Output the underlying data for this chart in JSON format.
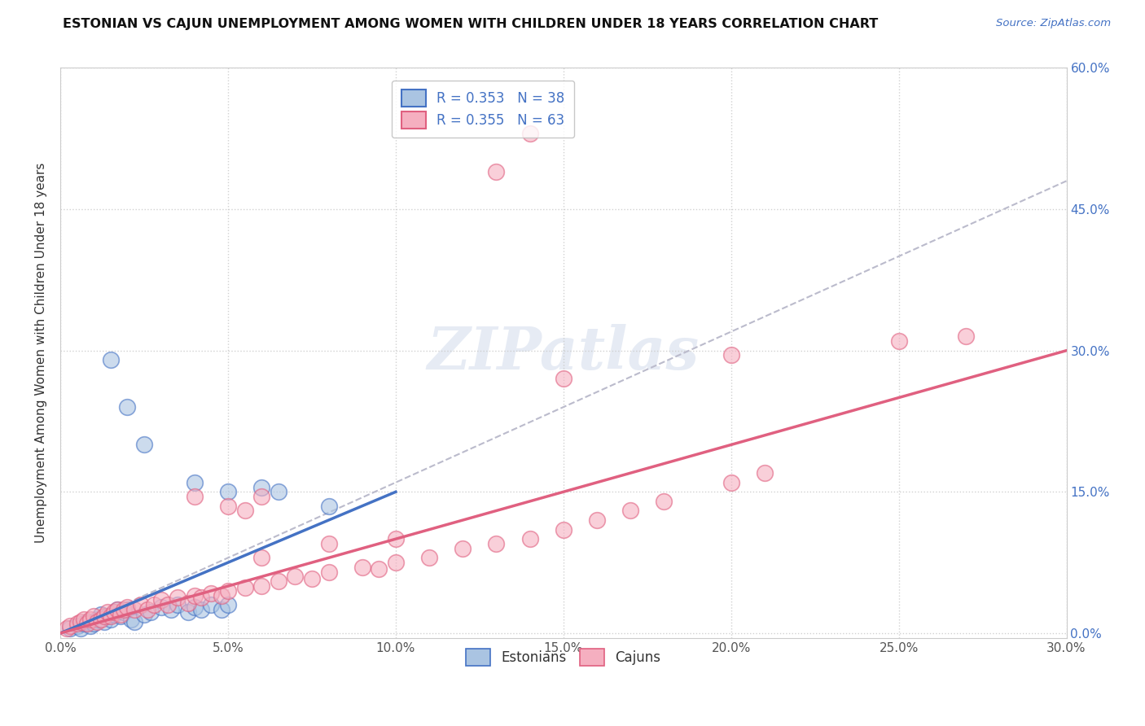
{
  "title": "ESTONIAN VS CAJUN UNEMPLOYMENT AMONG WOMEN WITH CHILDREN UNDER 18 YEARS CORRELATION CHART",
  "source": "Source: ZipAtlas.com",
  "ylabel": "Unemployment Among Women with Children Under 18 years",
  "xlim": [
    0.0,
    0.3
  ],
  "ylim": [
    -0.005,
    0.6
  ],
  "xticks": [
    0.0,
    0.05,
    0.1,
    0.15,
    0.2,
    0.25,
    0.3
  ],
  "yticks": [
    0.0,
    0.15,
    0.3,
    0.45,
    0.6
  ],
  "xtick_labels": [
    "0.0%",
    "5.0%",
    "10.0%",
    "15.0%",
    "20.0%",
    "25.0%",
    "30.0%"
  ],
  "ytick_labels_right": [
    "0.0%",
    "15.0%",
    "30.0%",
    "45.0%",
    "60.0%"
  ],
  "legend_R_estonian": "R = 0.353",
  "legend_N_estonian": "N = 38",
  "legend_R_cajun": "R = 0.355",
  "legend_N_cajun": "N = 63",
  "estonian_color": "#aac4e2",
  "cajun_color": "#f5afc0",
  "line_estonian_color": "#4472C4",
  "line_cajun_color": "#e06080",
  "trendline_color": "#aaaacc",
  "watermark": "ZIPatlas",
  "background_color": "#ffffff",
  "grid_color": "#cccccc",
  "est_x": [
    0.003,
    0.005,
    0.006,
    0.007,
    0.008,
    0.009,
    0.01,
    0.011,
    0.012,
    0.013,
    0.014,
    0.015,
    0.016,
    0.017,
    0.018,
    0.019,
    0.02,
    0.021,
    0.022,
    0.025,
    0.027,
    0.03,
    0.033,
    0.035,
    0.038,
    0.04,
    0.042,
    0.045,
    0.048,
    0.05,
    0.015,
    0.02,
    0.025,
    0.04,
    0.05,
    0.06,
    0.065,
    0.08
  ],
  "est_y": [
    0.005,
    0.008,
    0.005,
    0.01,
    0.012,
    0.008,
    0.01,
    0.015,
    0.02,
    0.012,
    0.018,
    0.015,
    0.02,
    0.025,
    0.018,
    0.022,
    0.025,
    0.015,
    0.012,
    0.02,
    0.022,
    0.028,
    0.025,
    0.03,
    0.022,
    0.028,
    0.025,
    0.03,
    0.025,
    0.03,
    0.29,
    0.24,
    0.2,
    0.16,
    0.15,
    0.155,
    0.15,
    0.135
  ],
  "caj_x": [
    0.002,
    0.003,
    0.005,
    0.006,
    0.007,
    0.008,
    0.009,
    0.01,
    0.011,
    0.012,
    0.013,
    0.014,
    0.015,
    0.016,
    0.017,
    0.018,
    0.019,
    0.02,
    0.022,
    0.024,
    0.026,
    0.028,
    0.03,
    0.032,
    0.035,
    0.038,
    0.04,
    0.042,
    0.045,
    0.048,
    0.05,
    0.055,
    0.06,
    0.065,
    0.07,
    0.075,
    0.08,
    0.09,
    0.095,
    0.1,
    0.11,
    0.12,
    0.13,
    0.14,
    0.15,
    0.16,
    0.17,
    0.18,
    0.2,
    0.21,
    0.04,
    0.05,
    0.055,
    0.06,
    0.15,
    0.2,
    0.25,
    0.27,
    0.13,
    0.14,
    0.06,
    0.08,
    0.1
  ],
  "caj_y": [
    0.005,
    0.008,
    0.01,
    0.012,
    0.015,
    0.01,
    0.015,
    0.018,
    0.012,
    0.015,
    0.018,
    0.022,
    0.018,
    0.022,
    0.025,
    0.02,
    0.025,
    0.028,
    0.025,
    0.03,
    0.025,
    0.03,
    0.035,
    0.03,
    0.038,
    0.032,
    0.04,
    0.038,
    0.042,
    0.04,
    0.045,
    0.048,
    0.05,
    0.055,
    0.06,
    0.058,
    0.065,
    0.07,
    0.068,
    0.075,
    0.08,
    0.09,
    0.095,
    0.1,
    0.11,
    0.12,
    0.13,
    0.14,
    0.16,
    0.17,
    0.145,
    0.135,
    0.13,
    0.145,
    0.27,
    0.295,
    0.31,
    0.315,
    0.49,
    0.53,
    0.08,
    0.095,
    0.1
  ]
}
